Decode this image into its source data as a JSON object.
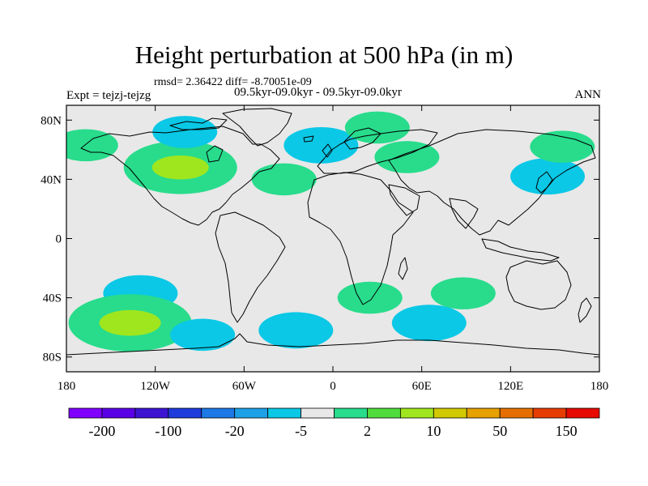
{
  "title": "Height perturbation at 500 hPa (in m)",
  "stats": "rmsd= 2.36422 diff= -8.70051e-09",
  "expt": "Expt = tejzj-tejzg",
  "period": "09.5kyr-09.0kyr - 09.5kyr-09.0kyr",
  "season": "ANN",
  "map": {
    "projection": "cylindrical-equidistant",
    "lon_range": [
      -180,
      180
    ],
    "lat_range": [
      -90,
      90
    ],
    "background_color": "#e8e8e8",
    "xticks": [
      {
        "value": -180,
        "label": "180"
      },
      {
        "value": -120,
        "label": "120W"
      },
      {
        "value": -60,
        "label": "60W"
      },
      {
        "value": 0,
        "label": "0"
      },
      {
        "value": 60,
        "label": "60E"
      },
      {
        "value": 120,
        "label": "120E"
      },
      {
        "value": 180,
        "label": "180"
      }
    ],
    "yticks": [
      {
        "value": 80,
        "label": "80N"
      },
      {
        "value": 40,
        "label": "40N"
      },
      {
        "value": 0,
        "label": "0"
      },
      {
        "value": -40,
        "label": "40S"
      },
      {
        "value": -80,
        "label": "80S"
      }
    ]
  },
  "colorbar": {
    "colors": [
      "#7f00ff",
      "#5a00e6",
      "#3c14d2",
      "#1e3cdc",
      "#1e78e6",
      "#1ea0e6",
      "#0ac8e6",
      "#e8e8e8",
      "#28dc8c",
      "#50dc3c",
      "#a0e61e",
      "#d2c800",
      "#e6a000",
      "#e66e00",
      "#e63c00",
      "#e60a00"
    ],
    "labels": [
      {
        "after_box": 0,
        "text": "-200"
      },
      {
        "after_box": 2,
        "text": "-100"
      },
      {
        "after_box": 4,
        "text": "-20"
      },
      {
        "after_box": 6,
        "text": "-5"
      },
      {
        "after_box": 8,
        "text": "2"
      },
      {
        "after_box": 10,
        "text": "10"
      },
      {
        "after_box": 12,
        "text": "50"
      },
      {
        "after_box": 14,
        "text": "150"
      }
    ]
  },
  "chart_data": {
    "type": "heatmap",
    "title": "Height perturbation at 500 hPa (in m)",
    "units": "m",
    "contour_levels": [
      -300,
      -200,
      -150,
      -100,
      -50,
      -20,
      -10,
      -5,
      -2,
      2,
      5,
      10,
      20,
      50,
      100,
      150,
      200
    ],
    "anomaly_regions": [
      {
        "lon": -167,
        "lat": 63,
        "value": 3,
        "sign": "positive"
      },
      {
        "lon": -103,
        "lat": 48,
        "value": 8,
        "sign": "positive"
      },
      {
        "lon": -100,
        "lat": 72,
        "value": -3,
        "sign": "negative"
      },
      {
        "lon": -33,
        "lat": 40,
        "value": 3,
        "sign": "positive"
      },
      {
        "lon": -8,
        "lat": 63,
        "value": -4,
        "sign": "negative"
      },
      {
        "lon": 30,
        "lat": 75,
        "value": 3,
        "sign": "positive"
      },
      {
        "lon": 50,
        "lat": 55,
        "value": 3,
        "sign": "positive"
      },
      {
        "lon": 145,
        "lat": 42,
        "value": -4,
        "sign": "negative"
      },
      {
        "lon": 155,
        "lat": 62,
        "value": 3,
        "sign": "positive"
      },
      {
        "lon": -130,
        "lat": -37,
        "value": -4,
        "sign": "negative"
      },
      {
        "lon": -137,
        "lat": -57,
        "value": 9,
        "sign": "positive"
      },
      {
        "lon": -88,
        "lat": -65,
        "value": -3,
        "sign": "negative"
      },
      {
        "lon": 25,
        "lat": -40,
        "value": 3,
        "sign": "positive"
      },
      {
        "lon": 88,
        "lat": -37,
        "value": 3,
        "sign": "positive"
      },
      {
        "lon": 65,
        "lat": -57,
        "value": -4,
        "sign": "negative"
      },
      {
        "lon": -25,
        "lat": -62,
        "value": -4,
        "sign": "negative"
      }
    ]
  }
}
